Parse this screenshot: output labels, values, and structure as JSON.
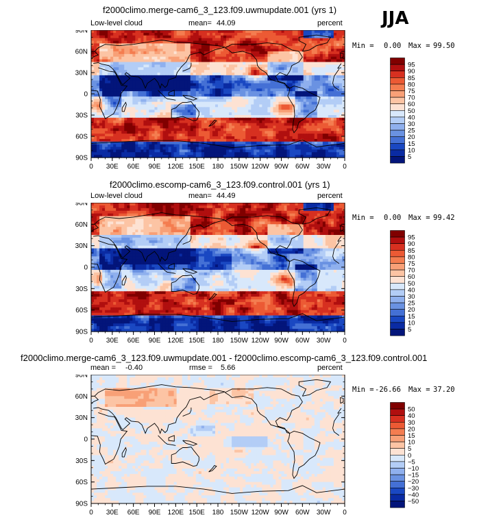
{
  "season": "JJA",
  "panels": [
    {
      "title": "f2000climo.merge-cam6_3_123.f09.uwmupdate.001 (yrs 1)",
      "left_label": "Low-level cloud",
      "stat_label": "mean=",
      "stat_value": "44.09",
      "stat2_label": "",
      "stat2_value": "",
      "units": "percent",
      "min_label": "Min =",
      "min_value": "0.00",
      "max_label": "Max =",
      "max_value": "99.50",
      "colorbar": [
        "95",
        "90",
        "85",
        "80",
        "75",
        "70",
        "60",
        "50",
        "40",
        "30",
        "25",
        "20",
        "15",
        "10",
        "5"
      ]
    },
    {
      "title": "f2000climo.escomp-cam6_3_123.f09.control.001 (yrs 1)",
      "left_label": "Low-level cloud",
      "stat_label": "mean=",
      "stat_value": "44.49",
      "stat2_label": "",
      "stat2_value": "",
      "units": "percent",
      "min_label": "Min =",
      "min_value": "0.00",
      "max_label": "Max =",
      "max_value": "99.42",
      "colorbar": [
        "95",
        "90",
        "85",
        "80",
        "75",
        "70",
        "60",
        "50",
        "40",
        "30",
        "25",
        "20",
        "15",
        "10",
        "5"
      ]
    },
    {
      "title": "f2000climo.merge-cam6_3_123.f09.uwmupdate.001 - f2000climo.escomp-cam6_3_123.f09.control.001",
      "left_label": "",
      "stat_label": "mean =",
      "stat_value": "-0.40",
      "stat2_label": "rmse =",
      "stat2_value": "5.66",
      "units": "percent",
      "min_label": "Min =",
      "min_value": "-26.66",
      "max_label": "Max =",
      "max_value": "37.20",
      "colorbar": [
        "50",
        "40",
        "30",
        "20",
        "15",
        "10",
        "5",
        "0",
        "−5",
        "−10",
        "−15",
        "−20",
        "−30",
        "−40",
        "−50"
      ]
    }
  ],
  "lat_ticks": [
    "90N",
    "60N",
    "30N",
    "0",
    "30S",
    "60S",
    "90S"
  ],
  "lon_ticks": [
    "0",
    "30E",
    "60E",
    "90E",
    "120E",
    "150E",
    "180",
    "150W",
    "120W",
    "90W",
    "60W",
    "30W",
    "0"
  ],
  "colors": {
    "abs_scale": [
      "#800000",
      "#b00f0f",
      "#d73020",
      "#ec5a34",
      "#f47d50",
      "#f8a077",
      "#fcc4a4",
      "#fde2d3",
      "#d8e8fb",
      "#b3cdf6",
      "#8fb0ee",
      "#6a92e2",
      "#4470d5",
      "#1a48c2",
      "#0a2ba3",
      "#03157a"
    ],
    "diff_scale": [
      "#800000",
      "#b00f0f",
      "#d73020",
      "#ec5a34",
      "#f47d50",
      "#f8a077",
      "#fcc4a4",
      "#fde2d3",
      "#d8e8fb",
      "#b3cdf6",
      "#8fb0ee",
      "#6a92e2",
      "#4470d5",
      "#1a48c2",
      "#0a2ba3",
      "#03157a"
    ]
  },
  "chart_data": [
    {
      "type": "heatmap",
      "title": "f2000climo.merge-cam6_3_123.f09.uwmupdate.001 (yrs 1)",
      "variable": "Low-level cloud",
      "units": "percent",
      "mean": 44.09,
      "min": 0.0,
      "max": 99.5,
      "levels": [
        5,
        10,
        15,
        20,
        25,
        30,
        40,
        50,
        60,
        70,
        75,
        80,
        85,
        90,
        95
      ],
      "xlabel": "",
      "ylabel": "",
      "xlim": [
        0,
        360
      ],
      "ylim": [
        -90,
        90
      ]
    },
    {
      "type": "heatmap",
      "title": "f2000climo.escomp-cam6_3_123.f09.control.001 (yrs 1)",
      "variable": "Low-level cloud",
      "units": "percent",
      "mean": 44.49,
      "min": 0.0,
      "max": 99.42,
      "levels": [
        5,
        10,
        15,
        20,
        25,
        30,
        40,
        50,
        60,
        70,
        75,
        80,
        85,
        90,
        95
      ],
      "xlim": [
        0,
        360
      ],
      "ylim": [
        -90,
        90
      ]
    },
    {
      "type": "heatmap",
      "title": "f2000climo.merge-cam6_3_123.f09.uwmupdate.001 - f2000climo.escomp-cam6_3_123.f09.control.001",
      "units": "percent",
      "mean": -0.4,
      "rmse": 5.66,
      "min": -26.66,
      "max": 37.2,
      "levels": [
        -50,
        -40,
        -30,
        -20,
        -15,
        -10,
        -5,
        0,
        5,
        10,
        15,
        20,
        30,
        40,
        50
      ],
      "xlim": [
        0,
        360
      ],
      "ylim": [
        -90,
        90
      ]
    }
  ]
}
